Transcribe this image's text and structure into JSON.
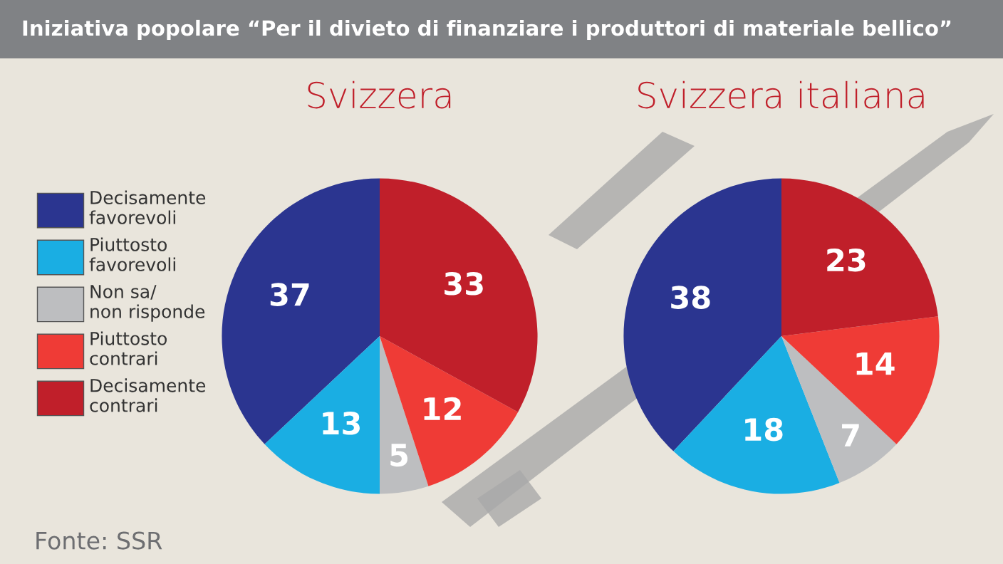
{
  "chart_data": [
    {
      "type": "pie",
      "title": "Iniziativa popolare “Per il divieto di finanziare i produttori di materiale bellico”",
      "subtitle": "Svizzera",
      "categories": [
        "Decisamente\nfavorevoli",
        "Piuttosto\nfavorevoli",
        "Non sa/\nnon risponde",
        "Piuttosto\ncontrari",
        "Decisamente\ncontrari"
      ],
      "values": [
        37,
        13,
        5,
        12,
        33
      ],
      "colors": [
        "#2b3590",
        "#1aaee3",
        "#bdbec0",
        "#ef3b36",
        "#c01f2a"
      ],
      "data_labels": true,
      "legend": "left",
      "annotations": [
        "Fonte: SSR"
      ]
    },
    {
      "type": "pie",
      "subtitle": "Svizzera italiana",
      "categories": [
        null,
        null,
        null,
        null,
        null
      ],
      "values": [
        38,
        18,
        7,
        14,
        23
      ],
      "colors": [
        "#2b3590",
        "#1aaee3",
        "#bdbec0",
        "#ef3b36",
        "#c01f2a"
      ],
      "data_labels": true
    }
  ]
}
